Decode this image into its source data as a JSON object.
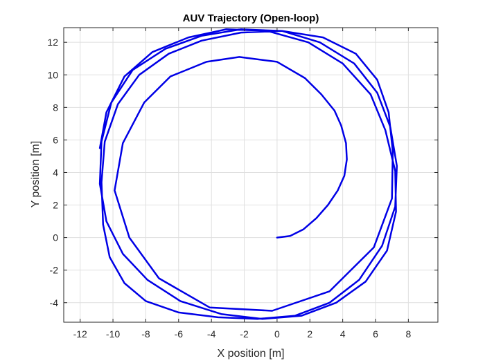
{
  "chart_data": {
    "type": "line",
    "title": "AUV Trajectory (Open-loop)",
    "xlabel": "X position [m]",
    "ylabel": "Y position [m]",
    "xlim": [
      -13,
      9.8
    ],
    "ylim": [
      -5.2,
      12.9
    ],
    "xticks": [
      -12,
      -10,
      -8,
      -6,
      -4,
      -2,
      0,
      2,
      4,
      6,
      8
    ],
    "yticks": [
      -4,
      -2,
      0,
      2,
      4,
      6,
      8,
      10,
      12
    ],
    "grid": true,
    "line_color": "#0000e6",
    "series": [
      {
        "name": "",
        "x": [
          0,
          0.8,
          1.6,
          2.4,
          3.1,
          3.7,
          4.1,
          4.25,
          4.2,
          3.9,
          3.5,
          2.7,
          1.7,
          0,
          -2.3,
          -4.3,
          -6.5,
          -8.1,
          -9.4,
          -9.9,
          -9.0,
          -7.2,
          -4.1,
          -0.3,
          3.2,
          5.9,
          7.0,
          7.05,
          6.8,
          6.1,
          4.8,
          2.8,
          0.3,
          -2.2,
          -4.6,
          -6.6,
          -8.4,
          -9.7,
          -10.5,
          -10.7,
          -10.6,
          -10.2,
          -9.3,
          -8.0,
          -6.0,
          -3.6,
          -1.2,
          1.1,
          3.2,
          5.0,
          6.4,
          7.2,
          7.3,
          6.9,
          6.1,
          4.7,
          2.6,
          0.3,
          -2.2,
          -4.6,
          -6.8,
          -8.8,
          -10.1,
          -10.7,
          -10.8,
          -10.4,
          -9.4,
          -7.9,
          -5.9,
          -3.4,
          -0.9,
          1.5,
          3.6,
          5.4,
          6.7,
          7.25,
          7.2,
          6.6,
          5.7,
          4.0,
          1.9,
          -0.6,
          -3.1,
          -5.4,
          -7.6,
          -9.3,
          -10.4,
          -10.8
        ],
        "y": [
          0,
          0.1,
          0.5,
          1.2,
          2.0,
          2.9,
          3.8,
          4.8,
          5.8,
          6.9,
          7.8,
          8.8,
          9.8,
          10.8,
          11.1,
          10.8,
          9.9,
          8.3,
          5.8,
          2.9,
          0,
          -2.5,
          -4.3,
          -4.5,
          -3.3,
          -0.6,
          2.4,
          5.3,
          7.7,
          9.7,
          11.3,
          12.3,
          12.7,
          12.6,
          12.1,
          11.3,
          10.0,
          8.2,
          5.9,
          3.4,
          0.8,
          -1.2,
          -2.8,
          -3.9,
          -4.6,
          -4.9,
          -5.0,
          -4.8,
          -4.0,
          -2.6,
          -0.5,
          1.9,
          4.4,
          6.8,
          8.9,
          10.7,
          12.0,
          12.7,
          12.8,
          12.4,
          11.6,
          10.3,
          8.3,
          5.9,
          3.3,
          1.0,
          -1.0,
          -2.6,
          -3.9,
          -4.7,
          -5.0,
          -4.8,
          -4.0,
          -2.7,
          -0.8,
          1.6,
          4.1,
          6.6,
          8.8,
          10.7,
          12.0,
          12.7,
          12.8,
          12.3,
          11.4,
          9.9,
          7.7,
          5.5
        ]
      }
    ]
  }
}
